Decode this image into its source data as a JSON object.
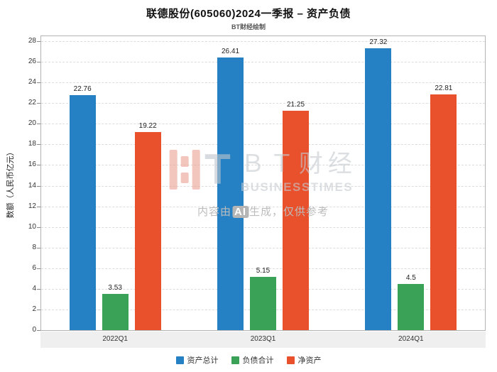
{
  "title": "联德股份(605060)2024一季报 – 资产负债",
  "subtitle": "BT财经绘制",
  "watermark": {
    "logo_t": "T",
    "brand_cn": "ＢＴ财经",
    "brand_en": "BUSINESSTIMES",
    "disclaimer_prefix": "内容由",
    "disclaimer_ai": "AI",
    "disclaimer_suffix": "生成，仅供参考"
  },
  "chart_data": {
    "type": "bar",
    "categories": [
      "2022Q1",
      "2023Q1",
      "2024Q1"
    ],
    "series": [
      {
        "name": "资产总计",
        "color": "#2581c4",
        "values": [
          22.76,
          26.41,
          27.32
        ]
      },
      {
        "name": "负债合计",
        "color": "#3aa257",
        "values": [
          3.53,
          5.15,
          4.5
        ]
      },
      {
        "name": "净资产",
        "color": "#e8512c",
        "values": [
          19.22,
          21.25,
          22.81
        ]
      }
    ],
    "title": "联德股份(605060)2024一季报 – 资产负债",
    "xlabel": "",
    "ylabel": "数额（人民币亿元）",
    "ylim": [
      0,
      28
    ],
    "ytick_step": 2,
    "grid": "horizontal-dashed",
    "legend_position": "bottom"
  }
}
